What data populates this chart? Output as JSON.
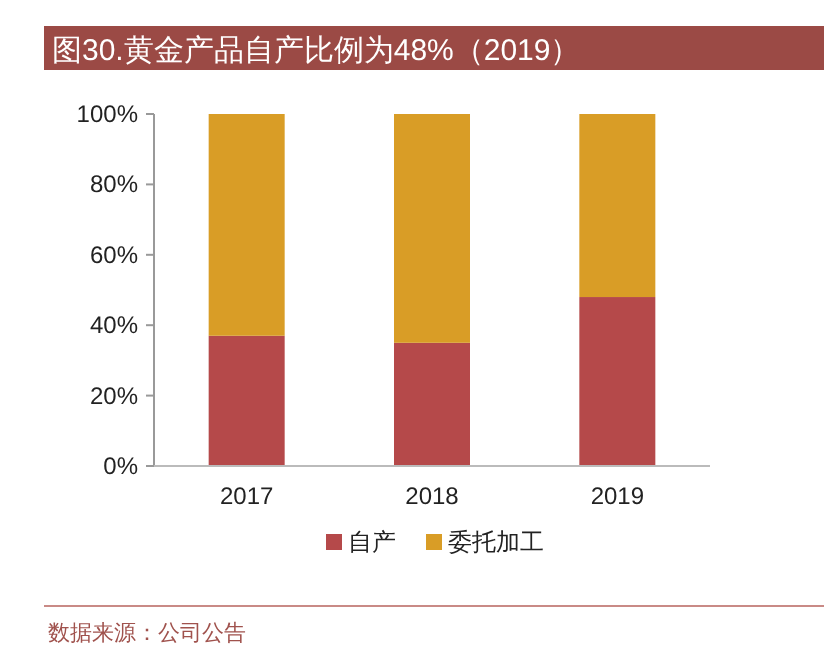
{
  "chart_data": {
    "type": "bar",
    "title": "图30.黄金产品自产比例为48%（2019）",
    "categories": [
      "2017",
      "2018",
      "2019"
    ],
    "stacked": true,
    "series": [
      {
        "name": "自产",
        "color": "#b5494a",
        "values": [
          37,
          35,
          48
        ]
      },
      {
        "name": "委托加工",
        "color": "#d99d26",
        "values": [
          63,
          65,
          52
        ]
      }
    ],
    "ylim": [
      0,
      100
    ],
    "yticks": [
      {
        "value": 0,
        "label": "0%"
      },
      {
        "value": 20,
        "label": "20%"
      },
      {
        "value": 40,
        "label": "40%"
      },
      {
        "value": 60,
        "label": "60%"
      },
      {
        "value": 80,
        "label": "80%"
      },
      {
        "value": 100,
        "label": "100%"
      }
    ],
    "legend": "bottom",
    "grid": false,
    "annotations": [
      "数据来源：公司公告"
    ]
  }
}
